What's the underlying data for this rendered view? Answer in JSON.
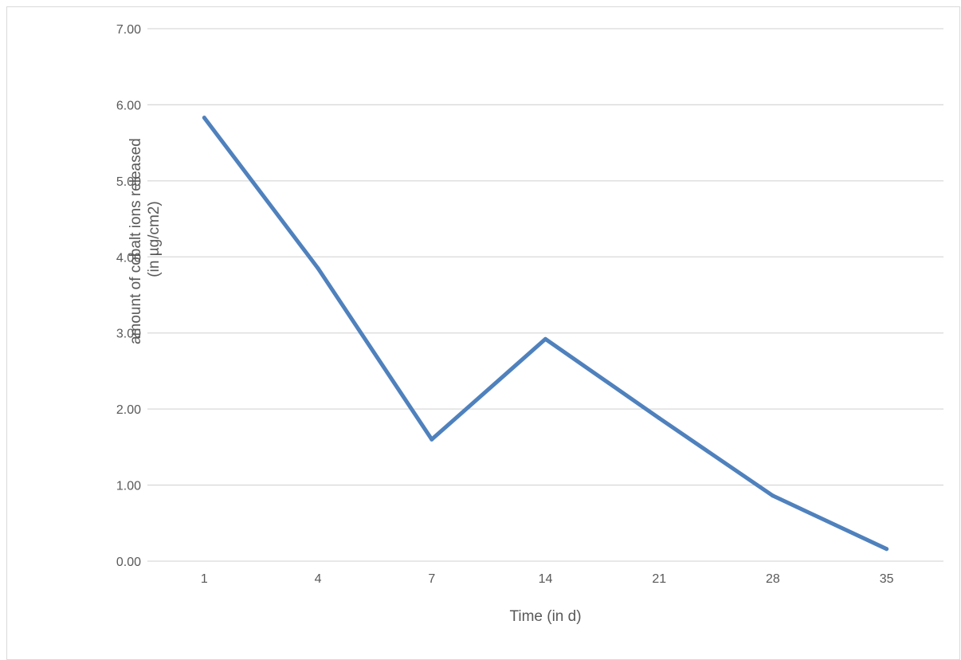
{
  "chart_data": {
    "type": "line",
    "categories": [
      "1",
      "4",
      "7",
      "14",
      "21",
      "28",
      "35"
    ],
    "series": [
      {
        "values": [
          5.83,
          3.85,
          1.6,
          2.92,
          1.88,
          0.86,
          0.16
        ],
        "color": "#4f81bd"
      }
    ],
    "xlabel": "Time (in d)",
    "ylabel_lines": [
      "amount of cobalt ions released",
      "(in µg/cm2)"
    ],
    "ylim": [
      0,
      7
    ],
    "yticks": [
      "0.00",
      "1.00",
      "2.00",
      "3.00",
      "4.00",
      "5.00",
      "6.00",
      "7.00"
    ],
    "grid": true,
    "legend": "none",
    "gridline_color": "#d9d9d9"
  }
}
